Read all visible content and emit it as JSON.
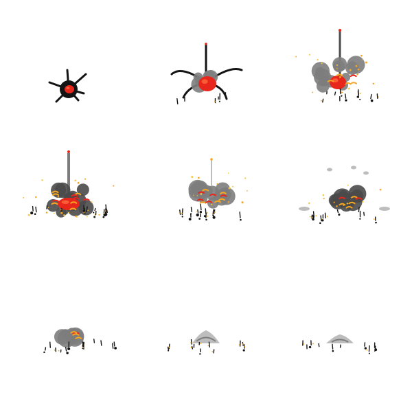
{
  "sprite_sheet": {
    "grid": {
      "columns": 3,
      "rows": 3
    },
    "frame_count": 9,
    "palette": {
      "background": "#ffffff",
      "core": "#e8271c",
      "core_dark": "#b5120c",
      "soot": "#141414",
      "smoke_dark": "#4a4a4a",
      "smoke": "#7d7d7d",
      "smoke_light": "#bdbdbd",
      "flame": "#f5a623",
      "spark": "#f7c948"
    },
    "frames": [
      {
        "stage": "ignition",
        "core_intensity": 1.0,
        "smoke_level": 0.0,
        "debris_level": 0.2
      },
      {
        "stage": "burst",
        "core_intensity": 1.0,
        "smoke_level": 0.15,
        "debris_level": 0.6
      },
      {
        "stage": "expansion",
        "core_intensity": 0.9,
        "smoke_level": 0.45,
        "debris_level": 0.8
      },
      {
        "stage": "fireball",
        "core_intensity": 0.75,
        "smoke_level": 0.7,
        "debris_level": 0.9
      },
      {
        "stage": "billow",
        "core_intensity": 0.5,
        "smoke_level": 0.85,
        "debris_level": 0.8
      },
      {
        "stage": "smoke",
        "core_intensity": 0.35,
        "smoke_level": 0.9,
        "debris_level": 0.6
      },
      {
        "stage": "embers",
        "core_intensity": 0.2,
        "smoke_level": 0.6,
        "debris_level": 0.5
      },
      {
        "stage": "dissipate",
        "core_intensity": 0.05,
        "smoke_level": 0.4,
        "debris_level": 0.4
      },
      {
        "stage": "fade",
        "core_intensity": 0.0,
        "smoke_level": 0.3,
        "debris_level": 0.3
      }
    ]
  }
}
